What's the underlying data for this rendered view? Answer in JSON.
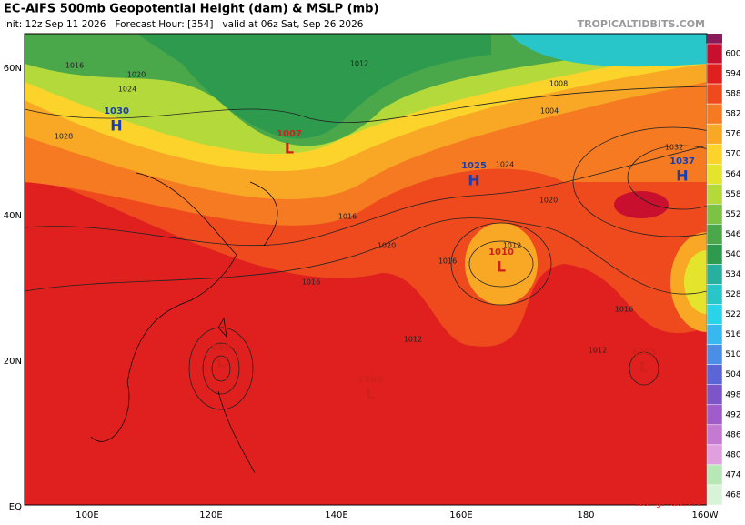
{
  "header": {
    "title": "EC-AIFS 500mb Geopotential Height (dam) & MSLP (mb)",
    "subtitle": "Init: 12z Sep 11 2026   Forecast Hour: [354]   valid at 06z Sat, Sep 26 2026",
    "brand": "TROPICALTIDBITS.COM"
  },
  "map": {
    "lat_labels": [
      "60N",
      "40N",
      "20N",
      "EQ"
    ],
    "lon_labels": [
      "100E",
      "120E",
      "140E",
      "160E",
      "180",
      "160W"
    ],
    "centers": [
      {
        "letter": "H",
        "value": "1030",
        "color": "#1a3fb0"
      },
      {
        "letter": "L",
        "value": "1007",
        "color": "#d0201a"
      },
      {
        "letter": "H",
        "value": "1025",
        "color": "#1a3fb0"
      },
      {
        "letter": "L",
        "value": "1010",
        "color": "#d0201a"
      },
      {
        "letter": "H",
        "value": "1037",
        "color": "#1a3fb0"
      },
      {
        "letter": "L",
        "value": "980",
        "color": "#d0201a"
      },
      {
        "letter": "L",
        "value": "1006",
        "color": "#d0201a"
      },
      {
        "letter": "L",
        "value": "1005",
        "color": "#d0201a"
      }
    ],
    "contour_labels": [
      "1016",
      "1020",
      "1024",
      "1012",
      "1008",
      "1004",
      "1028",
      "1032",
      "1016",
      "1020",
      "1012",
      "1016",
      "1012",
      "1016",
      "1012",
      "1024",
      "1020",
      "1016"
    ],
    "watermark": "NangMua.VN"
  },
  "colorbar": {
    "items": [
      {
        "label": "600",
        "color": "#c8102e"
      },
      {
        "label": "594",
        "color": "#e0201f"
      },
      {
        "label": "588",
        "color": "#ee4a1e"
      },
      {
        "label": "582",
        "color": "#f57a21"
      },
      {
        "label": "576",
        "color": "#f9a826"
      },
      {
        "label": "570",
        "color": "#fbd32b"
      },
      {
        "label": "564",
        "color": "#e4e42d"
      },
      {
        "label": "558",
        "color": "#b4d93a"
      },
      {
        "label": "552",
        "color": "#7cc244"
      },
      {
        "label": "546",
        "color": "#4aa84a"
      },
      {
        "label": "540",
        "color": "#2e9a4e"
      },
      {
        "label": "534",
        "color": "#27b0a0"
      },
      {
        "label": "528",
        "color": "#28c6c8"
      },
      {
        "label": "522",
        "color": "#2ad4e8"
      },
      {
        "label": "516",
        "color": "#38b8ee"
      },
      {
        "label": "510",
        "color": "#4a8ee6"
      },
      {
        "label": "504",
        "color": "#5b66d6"
      },
      {
        "label": "498",
        "color": "#7c56c8"
      },
      {
        "label": "492",
        "color": "#a05cc8"
      },
      {
        "label": "486",
        "color": "#c47ad2"
      },
      {
        "label": "480",
        "color": "#e0a0e0"
      },
      {
        "label": "474",
        "color": "#b6e8b6"
      },
      {
        "label": "468",
        "color": "#d8f4d8"
      }
    ]
  }
}
